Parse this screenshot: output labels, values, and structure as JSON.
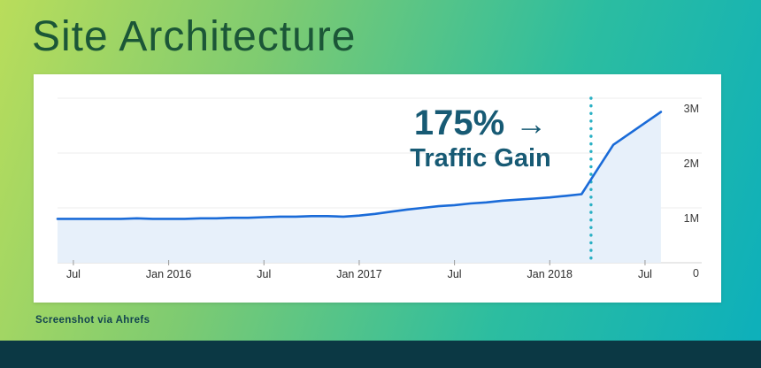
{
  "title": "Site Architecture",
  "caption": "Screenshot via Ahrefs",
  "annotation": {
    "percent": "175%",
    "arrow": "→",
    "label": "Traffic Gain"
  },
  "colors": {
    "background_gradient_start": "#b9dd5b",
    "background_gradient_end": "#0cafbc",
    "title_green": "#1b5637",
    "annotation_teal": "#175a74",
    "bottom_bar_navy": "#0b3844",
    "caption_color": "#12434f"
  },
  "chart_data": {
    "type": "area",
    "title": "",
    "xlabel": "",
    "ylabel": "",
    "unit": "M (millions of visits)",
    "grid": true,
    "ylim": [
      0,
      3
    ],
    "x_months": [
      "2015-06",
      "2015-07",
      "2015-08",
      "2015-09",
      "2015-10",
      "2015-11",
      "2015-12",
      "2016-01",
      "2016-02",
      "2016-03",
      "2016-04",
      "2016-05",
      "2016-06",
      "2016-07",
      "2016-08",
      "2016-09",
      "2016-10",
      "2016-11",
      "2016-12",
      "2017-01",
      "2017-02",
      "2017-03",
      "2017-04",
      "2017-05",
      "2017-06",
      "2017-07",
      "2017-08",
      "2017-09",
      "2017-10",
      "2017-11",
      "2017-12",
      "2018-01",
      "2018-02",
      "2018-03",
      "2018-04",
      "2018-05",
      "2018-06",
      "2018-07",
      "2018-08"
    ],
    "values": [
      0.8,
      0.8,
      0.8,
      0.8,
      0.8,
      0.81,
      0.8,
      0.8,
      0.8,
      0.81,
      0.81,
      0.82,
      0.82,
      0.83,
      0.84,
      0.84,
      0.85,
      0.85,
      0.84,
      0.86,
      0.89,
      0.93,
      0.97,
      1.0,
      1.03,
      1.05,
      1.08,
      1.1,
      1.13,
      1.15,
      1.17,
      1.19,
      1.22,
      1.25,
      1.7,
      2.15,
      2.35,
      2.55,
      2.75
    ],
    "yticks": [
      {
        "value": 0,
        "label": "0"
      },
      {
        "value": 1,
        "label": "1M"
      },
      {
        "value": 2,
        "label": "2M"
      },
      {
        "value": 3,
        "label": "3M"
      }
    ],
    "xticks": [
      {
        "month": "2015-07",
        "label": "Jul"
      },
      {
        "month": "2016-01",
        "label": "Jan 2016"
      },
      {
        "month": "2016-07",
        "label": "Jul"
      },
      {
        "month": "2017-01",
        "label": "Jan 2017"
      },
      {
        "month": "2017-07",
        "label": "Jul"
      },
      {
        "month": "2018-01",
        "label": "Jan 2018"
      },
      {
        "month": "2018-07",
        "label": "Jul"
      }
    ],
    "vline_month": "2018-03",
    "line_color": "#1a6bd8",
    "fill_color": "#e7f0fa",
    "vline_color": "#29b0c4",
    "gridline_color": "#ececec",
    "axis_line_color": "#dcdcdc",
    "tick_label_color": "#2b2b2b"
  }
}
